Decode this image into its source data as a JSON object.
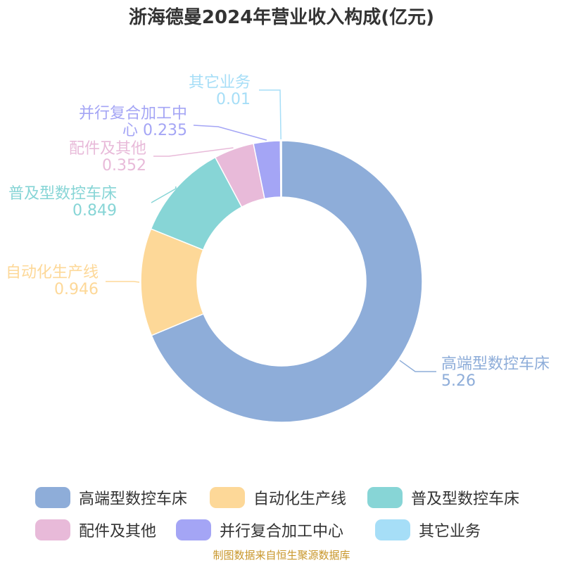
{
  "chart_data": {
    "type": "pie",
    "title": "浙海德曼2024年营业收入构成(亿元)",
    "donut": true,
    "legend_position": "bottom",
    "slices": [
      {
        "name": "高端型数控车床",
        "value": 5.26,
        "value_label": "5.26",
        "color": "#8eadd9",
        "label_lines": [
          "高端型数控车床",
          "5.26"
        ]
      },
      {
        "name": "自动化生产线",
        "value": 0.946,
        "value_label": "0.946",
        "color": "#fdd898",
        "label_lines": [
          "自动化生产线",
          "0.946"
        ]
      },
      {
        "name": "普及型数控车床",
        "value": 0.849,
        "value_label": "0.849",
        "color": "#87d5d6",
        "label_lines": [
          "普及型数控车床",
          "0.849"
        ]
      },
      {
        "name": "配件及其他",
        "value": 0.352,
        "value_label": "0.352",
        "color": "#e8bad9",
        "label_lines": [
          "配件及其他",
          "0.352"
        ]
      },
      {
        "name": "并行复合加工中心",
        "value": 0.235,
        "value_label": "0.235",
        "color": "#a4a5f5",
        "label_lines": [
          "并行复合加工中",
          "心 0.235"
        ]
      },
      {
        "name": "其它业务",
        "value": 0.01,
        "value_label": "0.01",
        "color": "#a6def7",
        "label_lines": [
          "其它业务",
          "0.01"
        ]
      }
    ]
  },
  "source_note": "制图数据来自恒生聚源数据库"
}
